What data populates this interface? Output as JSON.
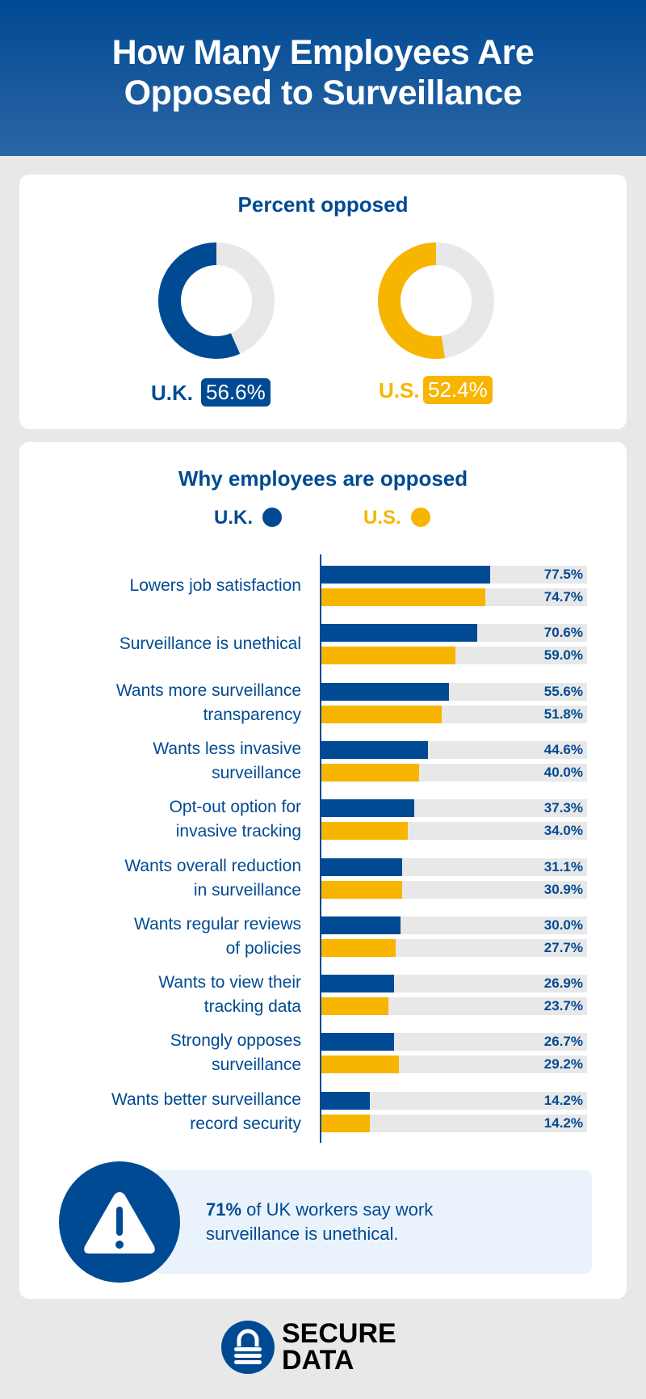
{
  "header": {
    "title_line1": "How Many Employees Are",
    "title_line2": "Opposed to Surveillance"
  },
  "colors": {
    "uk": "#004a93",
    "us": "#f7b500",
    "track": "#e8e8e8"
  },
  "chart_data": [
    {
      "type": "pie",
      "title": "Percent opposed",
      "series": [
        {
          "name": "U.K.",
          "value": 56.6,
          "label": "56.6%"
        },
        {
          "name": "U.S.",
          "value": 52.4,
          "label": "52.4%"
        }
      ]
    },
    {
      "type": "bar",
      "orientation": "horizontal",
      "title": "Why employees are opposed",
      "legend": [
        "U.K.",
        "U.S."
      ],
      "categories": [
        "Lowers job satisfaction",
        "Surveillance is unethical",
        "Wants more surveillance transparency",
        "Wants less invasive surveillance",
        "Opt-out option for invasive tracking",
        "Wants overall reduction in surveillance",
        "Wants regular reviews of policies",
        "Wants to view their tracking data",
        "Strongly opposes surveillance",
        "Wants better surveillance record security"
      ],
      "category_lines": [
        [
          "Lowers job satisfaction"
        ],
        [
          "Surveillance is unethical"
        ],
        [
          "Wants more surveillance",
          "transparency"
        ],
        [
          "Wants less invasive",
          "surveillance"
        ],
        [
          "Opt-out option for",
          "invasive tracking"
        ],
        [
          "Wants overall reduction",
          "in surveillance"
        ],
        [
          "Wants regular reviews",
          "of policies"
        ],
        [
          "Wants to view their",
          "tracking data"
        ],
        [
          "Strongly opposes",
          "surveillance"
        ],
        [
          "Wants better surveillance",
          "record security"
        ]
      ],
      "series": [
        {
          "name": "U.K.",
          "values": [
            77.5,
            70.6,
            55.6,
            44.6,
            37.3,
            31.1,
            30.0,
            26.9,
            26.7,
            14.2
          ]
        },
        {
          "name": "U.S.",
          "values": [
            74.7,
            59.0,
            51.8,
            40.0,
            34.0,
            30.9,
            27.7,
            23.7,
            29.2,
            14.2
          ]
        }
      ]
    }
  ],
  "callout": {
    "bold": "71%",
    "rest_line1": " of UK workers say work",
    "line2": "surveillance is unethical.",
    "icon": "warning-icon"
  },
  "logo": {
    "line1": "SECURE",
    "line2": "DATA"
  }
}
